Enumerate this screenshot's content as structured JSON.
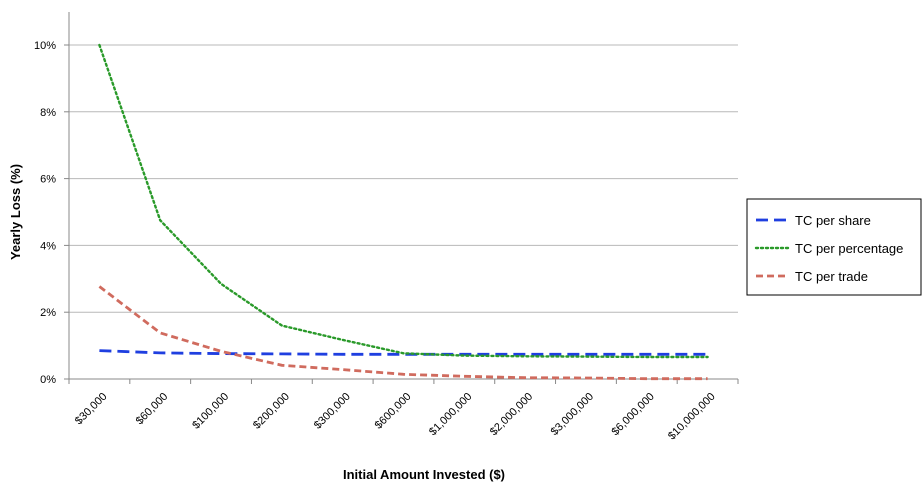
{
  "chart_data": {
    "type": "line",
    "title": "",
    "xlabel": "Initial Amount Invested ($)",
    "ylabel": "Yearly Loss (%)",
    "categories": [
      "$30,000",
      "$60,000",
      "$100,000",
      "$200,000",
      "$300,000",
      "$600,000",
      "$1,000,000",
      "$2,000,000",
      "$3,000,000",
      "$6,000,000",
      "$10,000,000"
    ],
    "y_ticks": [
      "0%",
      "2%",
      "4%",
      "6%",
      "8%",
      "10%"
    ],
    "ylim": [
      0,
      10
    ],
    "grid": "horizontal",
    "legend_position": "right",
    "series": [
      {
        "name": "TC per share",
        "color": "#1f3fe0",
        "dash": "dashed",
        "values": [
          0.85,
          0.78,
          0.76,
          0.75,
          0.74,
          0.74,
          0.74,
          0.74,
          0.74,
          0.74,
          0.74
        ]
      },
      {
        "name": "TC per percentage",
        "color": "#2a9a2a",
        "dash": "dotted",
        "values": [
          10.0,
          4.75,
          2.85,
          1.6,
          1.17,
          0.77,
          0.7,
          0.68,
          0.67,
          0.66,
          0.66
        ]
      },
      {
        "name": "TC per trade",
        "color": "#d06b5e",
        "dash": "short-dashed",
        "values": [
          2.77,
          1.38,
          0.83,
          0.41,
          0.28,
          0.14,
          0.08,
          0.04,
          0.03,
          0.01,
          0.01
        ]
      }
    ]
  }
}
